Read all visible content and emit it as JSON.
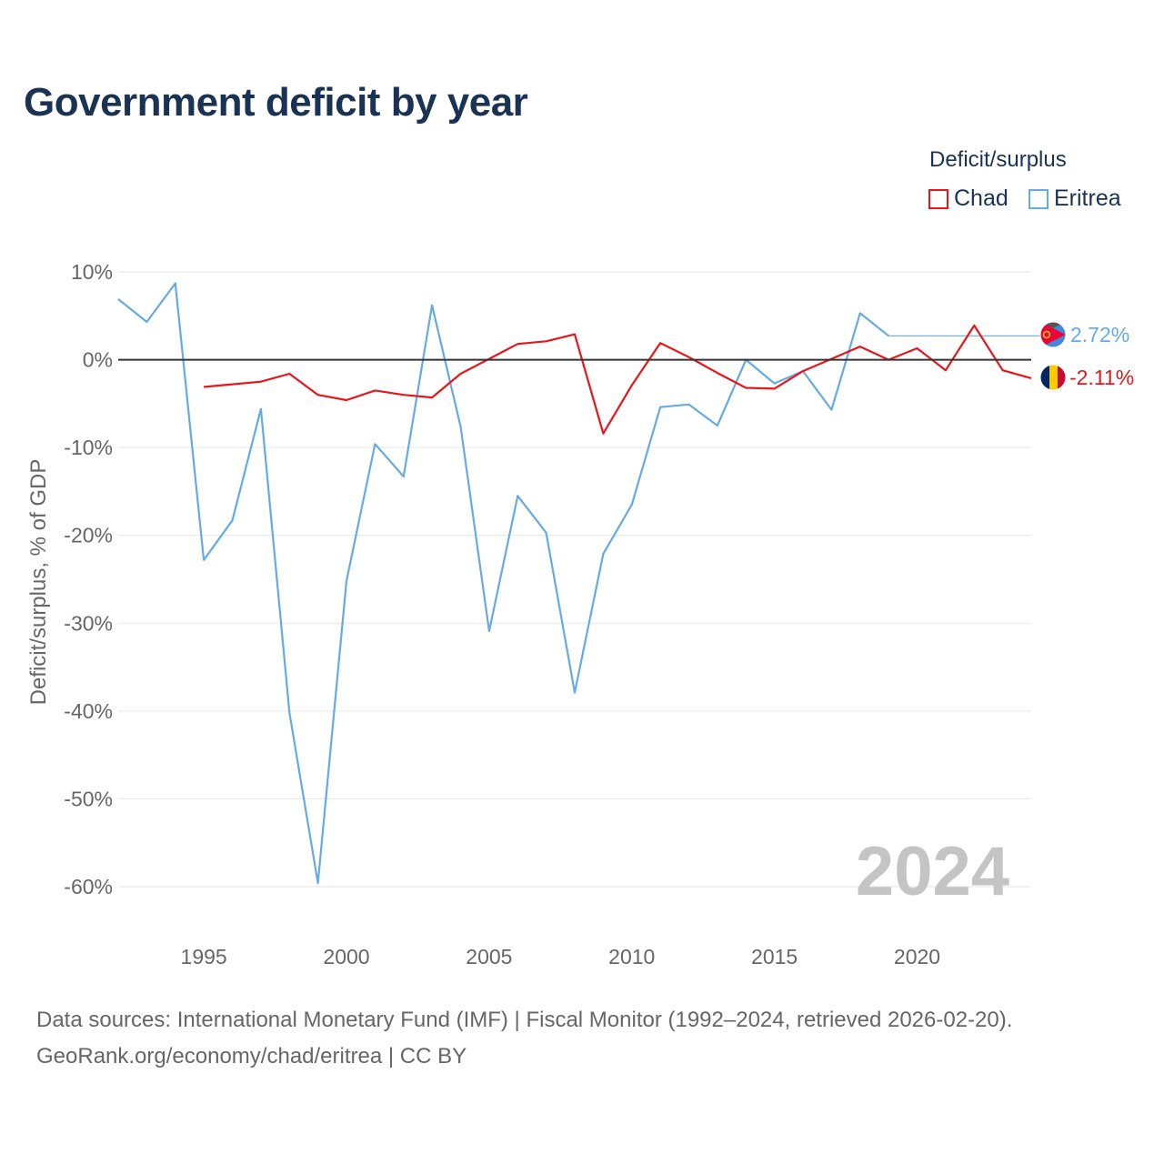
{
  "header": {
    "title": "Government deficit by year"
  },
  "legend": {
    "title": "Deficit/surplus",
    "items": [
      {
        "label": "Chad",
        "color": "#e8161b"
      },
      {
        "label": "Eritrea",
        "color": "#66aae2"
      }
    ]
  },
  "footer": {
    "line1": "Data sources: International Monetary Fund (IMF) | Fiscal Monitor (1992–2024, retrieved 2026-02-20).",
    "line2": "GeoRank.org/economy/chad/eritrea | CC BY"
  },
  "chart_data": {
    "type": "line",
    "title": "Government deficit by year",
    "xlabel": "",
    "ylabel": "Deficit/surplus, % of GDP",
    "xlim": [
      1992,
      2024
    ],
    "ylim": [
      -65,
      10
    ],
    "x_ticks": [
      1995,
      2000,
      2005,
      2010,
      2015,
      2020
    ],
    "x_tick_labels": [
      "1995",
      "2000",
      "2005",
      "2010",
      "2015",
      "2020"
    ],
    "y_ticks": [
      10,
      0,
      -10,
      -20,
      -30,
      -40,
      -50,
      -60
    ],
    "y_tick_labels": [
      "10%",
      "0%",
      "-10%",
      "-20%",
      "-30%",
      "-40%",
      "-50%",
      "-60%"
    ],
    "grid": true,
    "year_watermark": "2024",
    "series": [
      {
        "name": "Chad",
        "color": "#e8161b",
        "end_label": "-2.11%",
        "points": [
          [
            1995,
            -3.1
          ],
          [
            1996,
            -2.8
          ],
          [
            1997,
            -2.5
          ],
          [
            1998,
            -1.6
          ],
          [
            1999,
            -4.0
          ],
          [
            2000,
            -4.6
          ],
          [
            2001,
            -3.5
          ],
          [
            2002,
            -4.0
          ],
          [
            2003,
            -4.3
          ],
          [
            2004,
            -1.6
          ],
          [
            2005,
            0.1
          ],
          [
            2006,
            1.8
          ],
          [
            2007,
            2.1
          ],
          [
            2008,
            2.9
          ],
          [
            2009,
            -8.4
          ],
          [
            2010,
            -2.9
          ],
          [
            2011,
            1.9
          ],
          [
            2012,
            0.3
          ],
          [
            2013,
            -1.5
          ],
          [
            2014,
            -3.2
          ],
          [
            2015,
            -3.3
          ],
          [
            2016,
            -1.3
          ],
          [
            2017,
            0.1
          ],
          [
            2018,
            1.5
          ],
          [
            2019,
            0.0
          ],
          [
            2020,
            1.3
          ],
          [
            2021,
            -1.2
          ],
          [
            2022,
            3.9
          ],
          [
            2023,
            -1.2
          ],
          [
            2024,
            -2.11
          ]
        ]
      },
      {
        "name": "Eritrea",
        "color": "#66aae2",
        "end_label": "2.72%",
        "points": [
          [
            1992,
            6.9
          ],
          [
            1993,
            4.3
          ],
          [
            1994,
            8.7
          ],
          [
            1995,
            -22.8
          ],
          [
            1996,
            -18.3
          ],
          [
            1997,
            -5.6
          ],
          [
            1998,
            -40.2
          ],
          [
            1999,
            -59.6
          ],
          [
            2000,
            -25.2
          ],
          [
            2001,
            -9.6
          ],
          [
            2002,
            -13.3
          ],
          [
            2003,
            6.2
          ],
          [
            2004,
            -7.6
          ],
          [
            2005,
            -30.9
          ],
          [
            2006,
            -15.5
          ],
          [
            2007,
            -19.7
          ],
          [
            2008,
            -37.9
          ],
          [
            2009,
            -22.1
          ],
          [
            2010,
            -16.5
          ],
          [
            2011,
            -5.4
          ],
          [
            2012,
            -5.1
          ],
          [
            2013,
            -7.5
          ],
          [
            2014,
            0.0
          ],
          [
            2015,
            -2.7
          ],
          [
            2016,
            -1.3
          ],
          [
            2017,
            -5.7
          ],
          [
            2018,
            5.3
          ],
          [
            2019,
            2.72
          ]
        ],
        "carry_forward_to": 2024
      }
    ]
  }
}
